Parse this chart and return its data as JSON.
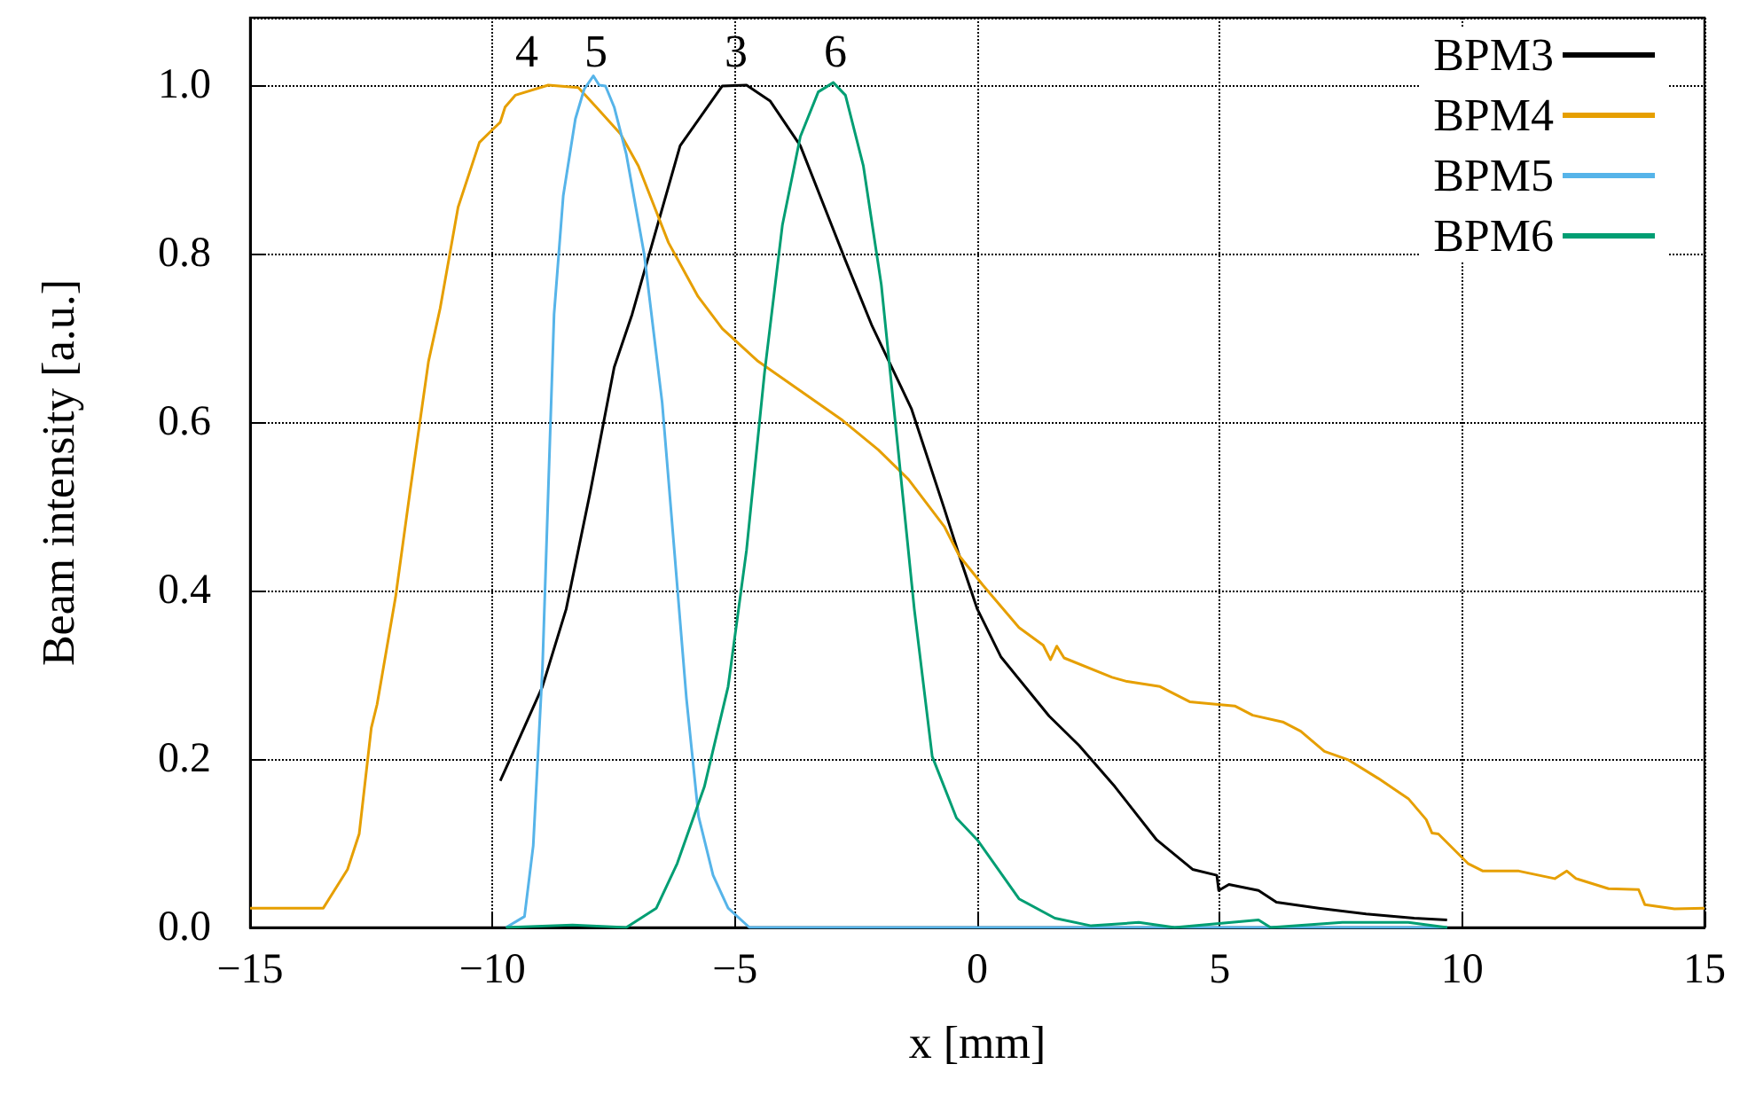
{
  "chart_data": {
    "type": "line",
    "xlabel": "x [mm]",
    "ylabel": "Beam intensity [a.u.]",
    "xlim": [
      -15,
      15
    ],
    "xticks": [
      {
        "value": -15,
        "label": "−15"
      },
      {
        "value": -10,
        "label": "−10"
      },
      {
        "value": -5,
        "label": "−5"
      },
      0,
      5,
      10,
      15
    ],
    "ylim": [
      0,
      1.08
    ],
    "yticks": [
      {
        "value": 0,
        "label": "0.0"
      },
      0.2,
      0.4,
      0.6,
      0.8,
      {
        "value": 1,
        "label": "1.0"
      }
    ],
    "grid": true,
    "legend": "top right",
    "marker": "none",
    "line_style": "solid",
    "annotations": [
      "4",
      "5",
      "3",
      "6"
    ],
    "series": [
      {
        "name": "BPM3",
        "color": "#000000",
        "x": [
          -9.84,
          -9.59,
          -8.97,
          -8.48,
          -7.98,
          -7.49,
          -7.12,
          -6.13,
          -5.26,
          -4.76,
          -4.27,
          -3.65,
          -2.72,
          -2.17,
          -1.36,
          -0.68,
          -0.37,
          0,
          0.49,
          1.48,
          2.1,
          2.84,
          3.7,
          4.44,
          4.94,
          4.98,
          5.19,
          5.8,
          6.17,
          7.04,
          8.02,
          9.01,
          9.69
        ],
        "values": [
          0.174,
          0.206,
          0.286,
          0.378,
          0.518,
          0.665,
          0.728,
          0.928,
          0.999,
          1.0,
          0.981,
          0.928,
          0.792,
          0.714,
          0.616,
          0.497,
          0.441,
          0.378,
          0.321,
          0.251,
          0.216,
          0.167,
          0.104,
          0.069,
          0.062,
          0.044,
          0.051,
          0.044,
          0.03,
          0.023,
          0.016,
          0.011,
          0.009
        ]
      },
      {
        "name": "BPM4",
        "color": "#e69f00",
        "x": [
          -15,
          -13.49,
          -12.99,
          -12.75,
          -12.5,
          -12.38,
          -12.0,
          -11.7,
          -11.32,
          -11.08,
          -10.71,
          -10.27,
          -10.02,
          -9.84,
          -9.74,
          -9.53,
          -8.85,
          -8.23,
          -7.86,
          -7.36,
          -6.99,
          -6.37,
          -5.76,
          -5.26,
          -4.52,
          -3.65,
          -2.78,
          -2.04,
          -1.42,
          -0.68,
          -0.37,
          0.12,
          0.86,
          1.36,
          1.51,
          1.64,
          1.79,
          2.78,
          3.09,
          3.77,
          4.38,
          5.31,
          5.68,
          6.3,
          6.67,
          7.16,
          7.65,
          8.27,
          8.89,
          9.26,
          9.38,
          9.51,
          10.12,
          10.43,
          11.17,
          11.91,
          12.16,
          12.35,
          13.02,
          13.64,
          13.77,
          14.38,
          15
        ],
        "values": [
          0.023,
          0.023,
          0.069,
          0.111,
          0.237,
          0.265,
          0.392,
          0.518,
          0.672,
          0.735,
          0.855,
          0.932,
          0.946,
          0.956,
          0.974,
          0.988,
          1.0,
          0.997,
          0.974,
          0.942,
          0.904,
          0.813,
          0.749,
          0.711,
          0.672,
          0.637,
          0.602,
          0.567,
          0.532,
          0.476,
          0.441,
          0.406,
          0.356,
          0.335,
          0.318,
          0.334,
          0.32,
          0.297,
          0.292,
          0.286,
          0.268,
          0.263,
          0.252,
          0.244,
          0.233,
          0.209,
          0.199,
          0.177,
          0.153,
          0.128,
          0.112,
          0.111,
          0.076,
          0.067,
          0.067,
          0.058,
          0.067,
          0.058,
          0.046,
          0.045,
          0.027,
          0.022,
          0.023
        ]
      },
      {
        "name": "BPM5",
        "color": "#56b4e9",
        "x": [
          -9.72,
          -9.34,
          -9.16,
          -8.97,
          -8.85,
          -8.73,
          -8.54,
          -8.29,
          -8.11,
          -7.92,
          -7.8,
          -7.67,
          -7.49,
          -7.24,
          -6.87,
          -6.5,
          -6.25,
          -6.0,
          -5.75,
          -5.45,
          -5.14,
          -4.7,
          9.69
        ],
        "values": [
          0,
          0.013,
          0.097,
          0.307,
          0.518,
          0.728,
          0.869,
          0.96,
          0.995,
          1.011,
          1.0,
          0.999,
          0.974,
          0.918,
          0.799,
          0.623,
          0.448,
          0.272,
          0.132,
          0.062,
          0.023,
          0,
          0
        ]
      },
      {
        "name": "BPM6",
        "color": "#009e73",
        "x": [
          -9.72,
          -8.35,
          -7.24,
          -6.62,
          -6.19,
          -5.63,
          -5.14,
          -4.76,
          -4.39,
          -4.02,
          -3.65,
          -3.28,
          -2.97,
          -2.72,
          -2.35,
          -1.98,
          -1.67,
          -1.3,
          -0.93,
          -0.43,
          0,
          0.86,
          1.6,
          2.35,
          3.33,
          4.07,
          5.8,
          6.05,
          7.53,
          8.89,
          9.69
        ],
        "values": [
          0,
          0.003,
          0,
          0.023,
          0.076,
          0.167,
          0.286,
          0.448,
          0.658,
          0.834,
          0.939,
          0.992,
          1.003,
          0.988,
          0.904,
          0.763,
          0.588,
          0.378,
          0.203,
          0.13,
          0.104,
          0.034,
          0.011,
          0.002,
          0.006,
          0,
          0.009,
          0,
          0.006,
          0.006,
          0
        ]
      }
    ]
  }
}
